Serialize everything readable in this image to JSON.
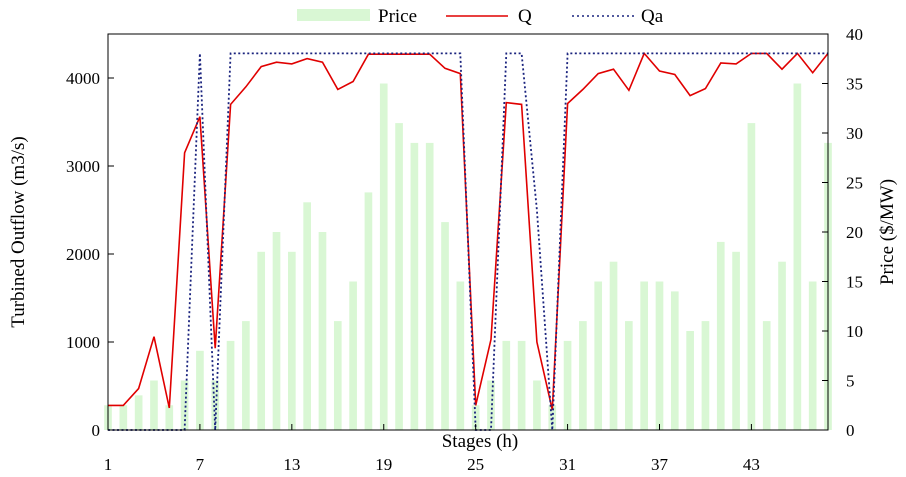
{
  "chart_data": {
    "type": "bar+line",
    "xlabel": "Stages (h)",
    "ylabel_left": "Turbined Outflow (m3/s)",
    "ylabel_right": "Price ($/MW)",
    "x_ticks": [
      "1",
      "7",
      "13",
      "19",
      "25",
      "31",
      "37",
      "43"
    ],
    "y_left_ticks": [
      "0",
      "1000",
      "2000",
      "3000",
      "4000"
    ],
    "y_right_ticks": [
      "0",
      "5",
      "10",
      "15",
      "20",
      "25",
      "30",
      "35",
      "40"
    ],
    "ylim_left": [
      0,
      4500
    ],
    "ylim_right": [
      0,
      40
    ],
    "xlim": [
      1,
      48
    ],
    "grid": false,
    "legend_position": "top",
    "stages": [
      1,
      2,
      3,
      4,
      5,
      6,
      7,
      8,
      9,
      10,
      11,
      12,
      13,
      14,
      15,
      16,
      17,
      18,
      19,
      20,
      21,
      22,
      23,
      24,
      25,
      26,
      27,
      28,
      29,
      30,
      31,
      32,
      33,
      34,
      35,
      36,
      37,
      38,
      39,
      40,
      41,
      42,
      43,
      44,
      45,
      46,
      47,
      48
    ],
    "series": [
      {
        "name": "Price",
        "kind": "bar",
        "axis": "right",
        "color": "#d9f7d4",
        "values": [
          2.5,
          2.5,
          3.5,
          5,
          2.5,
          5,
          8,
          5,
          9,
          11,
          18,
          20,
          18,
          23,
          20,
          11,
          15,
          24,
          35,
          31,
          29,
          29,
          21,
          15,
          2.5,
          5,
          9,
          9,
          5,
          2.5,
          9,
          11,
          15,
          17,
          11,
          15,
          15,
          14,
          10,
          11,
          19,
          18,
          31,
          11,
          17,
          35,
          15,
          29
        ]
      },
      {
        "name": "Q",
        "kind": "line",
        "axis": "left",
        "color": "#e00000",
        "dash": "solid",
        "values": [
          280,
          280,
          470,
          1060,
          250,
          3150,
          3560,
          930,
          3700,
          3900,
          4130,
          4180,
          4160,
          4220,
          4180,
          3870,
          3960,
          4270,
          4270,
          4270,
          4270,
          4270,
          4110,
          4050,
          280,
          1030,
          3720,
          3700,
          1000,
          230,
          3710,
          3870,
          4050,
          4100,
          3860,
          4280,
          4080,
          4040,
          3800,
          3880,
          4170,
          4160,
          4280,
          4280,
          4100,
          4280,
          4060,
          4280
        ]
      },
      {
        "name": "Qa",
        "kind": "line",
        "axis": "left",
        "color": "#1a237e",
        "dash": "dotted",
        "values": [
          0,
          0,
          0,
          0,
          0,
          0,
          4280,
          0,
          4280,
          4280,
          4280,
          4280,
          4280,
          4280,
          4280,
          4280,
          4280,
          4280,
          4280,
          4280,
          4280,
          4280,
          4280,
          4280,
          0,
          0,
          4280,
          4280,
          2500,
          0,
          4280,
          4280,
          4280,
          4280,
          4280,
          4280,
          4280,
          4280,
          4280,
          4280,
          4280,
          4280,
          4280,
          4280,
          4280,
          4280,
          4280,
          4280
        ]
      }
    ]
  }
}
